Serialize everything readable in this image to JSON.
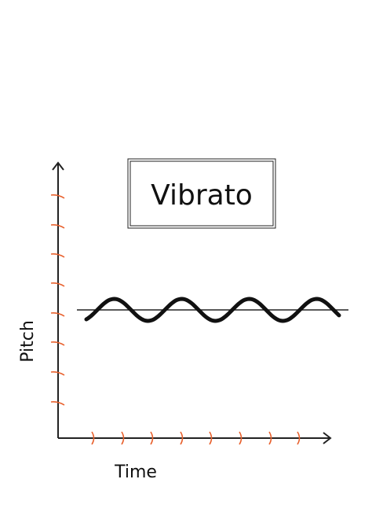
{
  "title": "Vibrato",
  "y_axis_label": "Pitch",
  "x_axis_label": "Time"
}
